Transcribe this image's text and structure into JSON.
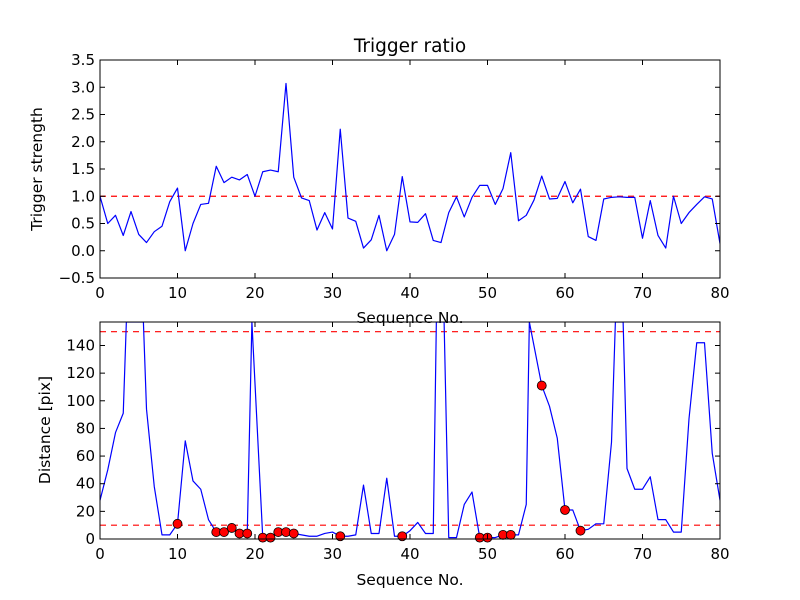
{
  "chart_data": [
    {
      "type": "line",
      "title": "Trigger ratio",
      "xlabel": "Sequence No.",
      "ylabel": "Trigger strength",
      "xlim": [
        0,
        80
      ],
      "ylim": [
        -0.5,
        3.5
      ],
      "xticks": [
        0,
        10,
        20,
        30,
        40,
        50,
        60,
        70,
        80
      ],
      "yticks": [
        -0.5,
        0.0,
        0.5,
        1.0,
        1.5,
        2.0,
        2.5,
        3.0,
        3.5
      ],
      "xtick_labels": [
        "0",
        "10",
        "20",
        "30",
        "40",
        "50",
        "60",
        "70",
        "80"
      ],
      "ytick_labels": [
        "−0.5",
        "0.0",
        "0.5",
        "1.0",
        "1.5",
        "2.0",
        "2.5",
        "3.0",
        "3.5"
      ],
      "line_color": "#0000ff",
      "threshold_color": "#ff0000",
      "thresholds": [
        1.0
      ],
      "series": [
        {
          "name": "trigger strength",
          "x": [
            0,
            1,
            2,
            3,
            4,
            5,
            6,
            7,
            8,
            9,
            10,
            11,
            12,
            13,
            14,
            15,
            16,
            17,
            18,
            19,
            20,
            21,
            22,
            23,
            24,
            25,
            26,
            27,
            28,
            29,
            30,
            31,
            32,
            33,
            34,
            35,
            36,
            37,
            38,
            39,
            40,
            41,
            42,
            43,
            44,
            45,
            46,
            47,
            48,
            49,
            50,
            51,
            52,
            53,
            54,
            55,
            56,
            57,
            58,
            59,
            60,
            61,
            62,
            63,
            64,
            65,
            66,
            67,
            68,
            69,
            70,
            71,
            72,
            73,
            74,
            75,
            76,
            77,
            78,
            79,
            80
          ],
          "y": [
            1.0,
            0.5,
            0.65,
            0.28,
            0.72,
            0.3,
            0.15,
            0.35,
            0.45,
            0.9,
            1.15,
            0.0,
            0.5,
            0.85,
            0.87,
            1.55,
            1.25,
            1.35,
            1.3,
            1.4,
            1.0,
            1.45,
            1.48,
            1.45,
            3.07,
            1.35,
            0.97,
            0.92,
            0.38,
            0.7,
            0.4,
            2.23,
            0.6,
            0.54,
            0.05,
            0.2,
            0.65,
            0.0,
            0.3,
            1.36,
            0.53,
            0.52,
            0.68,
            0.19,
            0.15,
            0.7,
            0.99,
            0.62,
            0.98,
            1.2,
            1.2,
            0.85,
            1.14,
            1.8,
            0.55,
            0.65,
            0.93,
            1.37,
            0.95,
            0.96,
            1.27,
            0.88,
            1.13,
            0.26,
            0.19,
            0.95,
            0.98,
            0.99,
            0.98,
            0.98,
            0.23,
            0.92,
            0.28,
            0.05,
            1.0,
            0.5,
            0.7,
            0.85,
            0.99,
            0.95,
            0.13
          ]
        }
      ]
    },
    {
      "type": "line",
      "title": "",
      "xlabel": "Sequence No.",
      "ylabel": "Distance [pix]",
      "xlim": [
        0,
        80
      ],
      "ylim": [
        0,
        157
      ],
      "xticks": [
        0,
        10,
        20,
        30,
        40,
        50,
        60,
        70,
        80
      ],
      "yticks": [
        0,
        20,
        40,
        60,
        80,
        100,
        120,
        140
      ],
      "xtick_labels": [
        "0",
        "10",
        "20",
        "30",
        "40",
        "50",
        "60",
        "70",
        "80"
      ],
      "ytick_labels": [
        "0",
        "20",
        "40",
        "60",
        "80",
        "100",
        "120",
        "140"
      ],
      "line_color": "#0000ff",
      "threshold_color": "#ff0000",
      "marker_color": "#ff0000",
      "thresholds": [
        150,
        10
      ],
      "series": [
        {
          "name": "distance",
          "x": [
            0,
            1,
            2,
            3,
            3.4,
            5.6,
            6,
            7,
            8,
            9,
            10,
            11,
            12,
            13,
            14,
            15,
            16,
            17,
            18,
            19,
            19.6,
            21,
            22,
            23,
            24,
            25,
            26,
            27,
            28,
            29,
            30,
            31,
            32,
            33,
            34,
            35,
            36,
            37,
            38,
            39,
            40,
            41,
            42,
            43,
            43.4,
            44.4,
            45,
            46,
            47,
            48,
            49,
            50,
            51,
            52,
            53,
            54,
            55,
            55.4,
            57,
            58,
            59,
            60,
            61,
            62,
            63,
            64,
            65,
            66,
            66.5,
            67.5,
            68,
            69,
            70,
            71,
            72,
            73,
            74,
            75,
            76,
            77,
            78,
            79,
            80
          ],
          "y": [
            28,
            50,
            77,
            91,
            157,
            157,
            94,
            38,
            3,
            3,
            11,
            71,
            42,
            36,
            14,
            5,
            5,
            8,
            4,
            4,
            157,
            1,
            1,
            5,
            5,
            4,
            3,
            2,
            2,
            4,
            5,
            2,
            2,
            3,
            39,
            4,
            4,
            44,
            2,
            2,
            6,
            12,
            4,
            4,
            157,
            157,
            1,
            1,
            25,
            34,
            1,
            1,
            1,
            3,
            3,
            3,
            25,
            157,
            111,
            96,
            73,
            21,
            21,
            6,
            7,
            11,
            11,
            70,
            157,
            157,
            51,
            36,
            36,
            45,
            14,
            14,
            5,
            5,
            87,
            142,
            142,
            62,
            28
          ]
        }
      ],
      "markers": {
        "name": "selected points",
        "x": [
          10,
          15,
          16,
          17,
          18,
          19,
          21,
          22,
          23,
          24,
          25,
          31,
          39,
          49,
          50,
          52,
          53,
          57,
          60,
          62
        ],
        "y": [
          11,
          5,
          5,
          8,
          4,
          4,
          1,
          1,
          5,
          5,
          4,
          2,
          2,
          1,
          1,
          3,
          3,
          111,
          21,
          6
        ]
      }
    }
  ]
}
